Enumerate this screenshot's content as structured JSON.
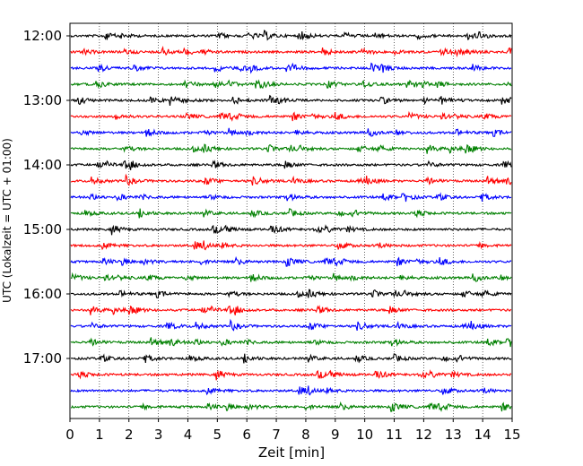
{
  "chart_data": {
    "type": "line",
    "title": "",
    "xlabel": "Zeit  [min]",
    "ylabel": "UTC (Lokalzeit = UTC + 01:00)",
    "xlim": [
      0,
      15
    ],
    "x_ticks": [
      0,
      1,
      2,
      3,
      4,
      5,
      6,
      7,
      8,
      9,
      10,
      11,
      12,
      13,
      14,
      15
    ],
    "y_tick_labels": [
      "12:00",
      "13:00",
      "14:00",
      "15:00",
      "16:00",
      "17:00"
    ],
    "y_ticks_minutes": [
      0,
      60,
      120,
      180,
      240,
      300
    ],
    "trace_interval_minutes": 15,
    "trace_count": 24,
    "trace_offsets_minutes": [
      0,
      15,
      30,
      45,
      60,
      75,
      90,
      105,
      120,
      135,
      150,
      165,
      180,
      195,
      210,
      225,
      240,
      255,
      270,
      285,
      300,
      315,
      330,
      345
    ],
    "trace_colors": [
      "#000000",
      "#ff0000",
      "#0000ff",
      "#008000"
    ],
    "vertical_grid": true,
    "grid_style": "dotted"
  }
}
